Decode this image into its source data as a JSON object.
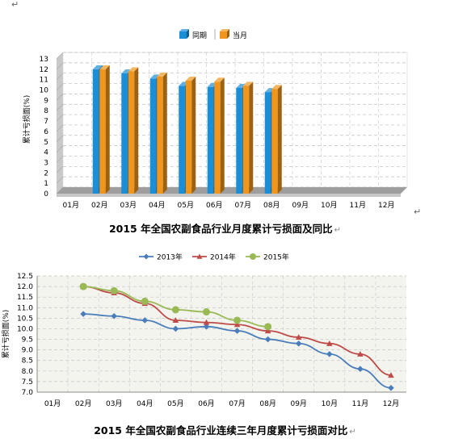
{
  "page": {
    "return_mark": "↵",
    "caption1": "2015 年全国农副食品行业月度累计亏损面及同比",
    "caption2": "2015 年全国农副食品行业连续三年月度累计亏损面对比"
  },
  "colors": {
    "bar_prior": "#1a8fd8",
    "bar_current": "#f0961c",
    "line_2013": "#4a7ebb",
    "line_2014": "#be4b48",
    "line_2015": "#98b954"
  },
  "chart_data": [
    {
      "type": "bar",
      "title": "",
      "xlabel": "",
      "ylabel": "累计亏损面(%)",
      "ylim": [
        0,
        13
      ],
      "yticks": [
        "0",
        "1",
        "2",
        "3",
        "4",
        "5",
        "6",
        "7",
        "8",
        "9",
        "10",
        "11",
        "12",
        "13"
      ],
      "categories": [
        "01月",
        "02月",
        "03月",
        "04月",
        "05月",
        "06月",
        "07月",
        "08月",
        "09月",
        "10月",
        "11月",
        "12月"
      ],
      "legend_position": "top-center",
      "grid": true,
      "series": [
        {
          "name": "同期",
          "values": [
            null,
            12.0,
            11.6,
            11.1,
            10.4,
            10.3,
            10.2,
            9.8,
            null,
            null,
            null,
            null
          ]
        },
        {
          "name": "当月",
          "values": [
            null,
            12.0,
            11.8,
            11.3,
            10.9,
            10.8,
            10.4,
            10.1,
            null,
            null,
            null,
            null
          ]
        }
      ]
    },
    {
      "type": "line",
      "title": "",
      "xlabel": "",
      "ylabel": "累计亏损面(%)",
      "ylim": [
        7.0,
        12.5
      ],
      "yticks": [
        "7.0",
        "7.5",
        "8.0",
        "8.5",
        "9.0",
        "9.5",
        "10.0",
        "10.5",
        "11.0",
        "11.5",
        "12.0",
        "12.5"
      ],
      "categories": [
        "01月",
        "02月",
        "03月",
        "04月",
        "05月",
        "06月",
        "07月",
        "08月",
        "09月",
        "10月",
        "11月",
        "12月"
      ],
      "legend_position": "top-center",
      "grid": true,
      "series": [
        {
          "name": "2013年",
          "values": [
            null,
            10.7,
            10.6,
            10.4,
            10.0,
            10.1,
            9.9,
            9.5,
            9.3,
            8.8,
            8.1,
            7.2
          ]
        },
        {
          "name": "2014年",
          "values": [
            null,
            12.0,
            11.7,
            11.2,
            10.4,
            10.3,
            10.2,
            9.9,
            9.6,
            9.3,
            8.8,
            7.8
          ]
        },
        {
          "name": "2015年",
          "values": [
            null,
            12.0,
            11.8,
            11.3,
            10.9,
            10.8,
            10.4,
            10.1,
            null,
            null,
            null,
            null
          ]
        }
      ]
    }
  ]
}
